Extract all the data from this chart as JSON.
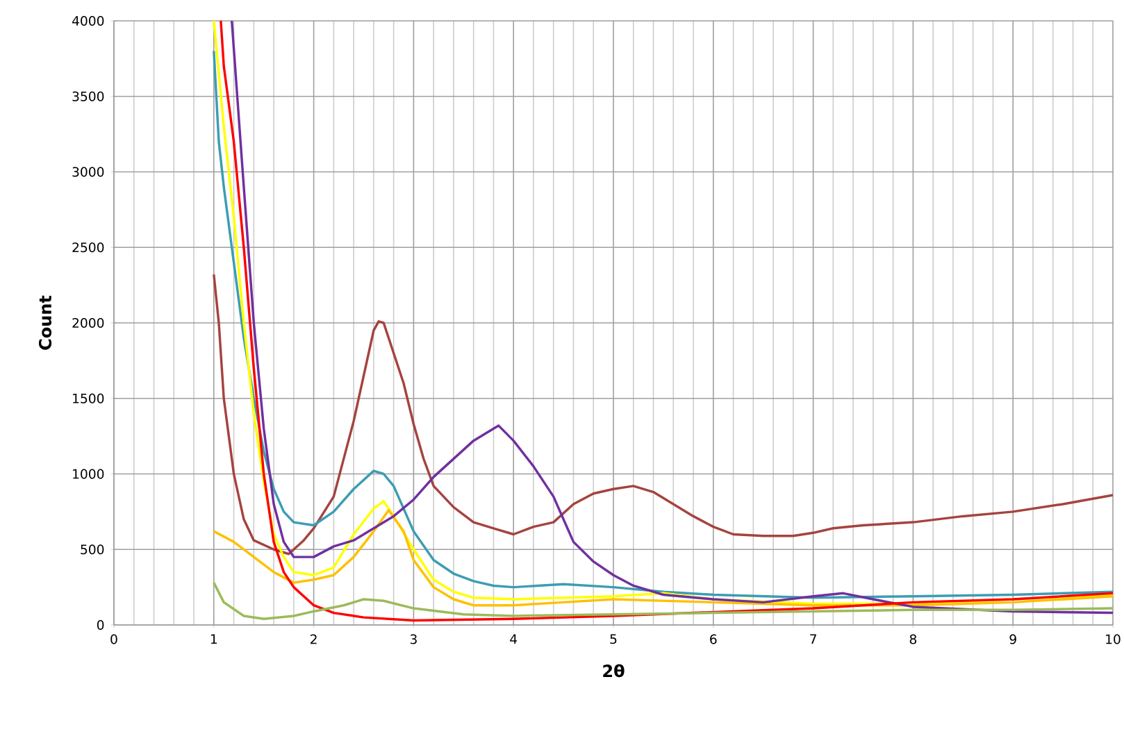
{
  "chart_data": {
    "type": "line",
    "xlabel": "2θ",
    "ylabel": "Count",
    "xlim": [
      0,
      10
    ],
    "ylim": [
      0,
      4000
    ],
    "xticks": [
      0,
      1,
      2,
      3,
      4,
      5,
      6,
      7,
      8,
      9,
      10
    ],
    "yticks": [
      0,
      500,
      1000,
      1500,
      2000,
      2500,
      3000,
      3500,
      4000
    ],
    "grid": true,
    "marker": "none",
    "line_style": "solid",
    "series": [
      {
        "color": "#a5433f",
        "x": [
          1.0,
          1.05,
          1.1,
          1.2,
          1.3,
          1.4,
          1.6,
          1.75,
          1.9,
          2.0,
          2.2,
          2.4,
          2.5,
          2.6,
          2.65,
          2.7,
          2.8,
          2.9,
          3.0,
          3.1,
          3.2,
          3.4,
          3.6,
          3.8,
          4.0,
          4.2,
          4.4,
          4.6,
          4.8,
          5.0,
          5.2,
          5.4,
          5.6,
          5.8,
          6.0,
          6.2,
          6.5,
          6.8,
          7.0,
          7.2,
          7.5,
          8.0,
          8.5,
          9.0,
          9.5,
          10.0
        ],
        "values": [
          2320,
          2000,
          1500,
          1000,
          700,
          560,
          500,
          470,
          560,
          640,
          850,
          1350,
          1650,
          1950,
          2010,
          2000,
          1800,
          1600,
          1330,
          1100,
          920,
          780,
          680,
          640,
          600,
          650,
          680,
          800,
          870,
          900,
          920,
          880,
          800,
          720,
          650,
          600,
          590,
          590,
          610,
          640,
          660,
          680,
          720,
          750,
          800,
          860
        ]
      },
      {
        "color": "#3c9db2",
        "x": [
          1.0,
          1.05,
          1.1,
          1.2,
          1.3,
          1.4,
          1.5,
          1.6,
          1.7,
          1.8,
          2.0,
          2.2,
          2.4,
          2.6,
          2.7,
          2.8,
          3.0,
          3.2,
          3.4,
          3.6,
          3.8,
          4.0,
          4.5,
          5.0,
          5.5,
          6.0,
          7.0,
          8.0,
          9.0,
          10.0
        ],
        "values": [
          3800,
          3200,
          2900,
          2400,
          1900,
          1500,
          1150,
          900,
          750,
          680,
          660,
          750,
          900,
          1020,
          1000,
          920,
          620,
          430,
          340,
          290,
          260,
          250,
          270,
          250,
          220,
          200,
          180,
          190,
          200,
          220
        ]
      },
      {
        "color": "#ffff00",
        "x": [
          1.0,
          1.1,
          1.2,
          1.3,
          1.4,
          1.5,
          1.6,
          1.7,
          1.8,
          2.0,
          2.2,
          2.4,
          2.6,
          2.7,
          2.8,
          3.0,
          3.2,
          3.4,
          3.6,
          4.0,
          4.5,
          5.0,
          5.5,
          6.0,
          7.0,
          8.0,
          9.0,
          10.0
        ],
        "values": [
          4000,
          3300,
          2700,
          2000,
          1400,
          950,
          600,
          450,
          350,
          330,
          380,
          600,
          770,
          820,
          720,
          500,
          300,
          220,
          180,
          170,
          180,
          190,
          210,
          170,
          140,
          140,
          170,
          200
        ]
      },
      {
        "color": "#ffc000",
        "x": [
          1.0,
          1.2,
          1.4,
          1.6,
          1.8,
          2.0,
          2.2,
          2.4,
          2.6,
          2.75,
          2.9,
          3.0,
          3.2,
          3.4,
          3.6,
          4.0,
          4.5,
          5.0,
          5.5,
          6.0,
          7.0,
          8.0,
          9.0,
          10.0
        ],
        "values": [
          620,
          550,
          450,
          350,
          280,
          300,
          330,
          450,
          620,
          760,
          620,
          430,
          250,
          170,
          130,
          130,
          150,
          170,
          160,
          150,
          130,
          130,
          150,
          190
        ]
      },
      {
        "color": "#7030a0",
        "x": [
          1.18,
          1.3,
          1.4,
          1.5,
          1.6,
          1.7,
          1.8,
          2.0,
          2.2,
          2.4,
          2.6,
          2.8,
          3.0,
          3.2,
          3.4,
          3.6,
          3.8,
          3.85,
          4.0,
          4.2,
          4.4,
          4.6,
          4.8,
          5.0,
          5.2,
          5.5,
          6.0,
          6.5,
          7.0,
          7.3,
          7.6,
          8.0,
          9.0,
          10.0
        ],
        "values": [
          4000,
          2900,
          2000,
          1300,
          800,
          550,
          450,
          450,
          520,
          560,
          640,
          720,
          830,
          980,
          1100,
          1220,
          1300,
          1320,
          1220,
          1050,
          850,
          550,
          420,
          330,
          260,
          200,
          170,
          150,
          190,
          210,
          170,
          120,
          90,
          80
        ]
      },
      {
        "color": "#ff0000",
        "x": [
          1.07,
          1.1,
          1.2,
          1.3,
          1.4,
          1.5,
          1.6,
          1.7,
          1.8,
          2.0,
          2.2,
          2.5,
          3.0,
          4.0,
          5.0,
          6.0,
          7.0,
          8.0,
          9.0,
          10.0
        ],
        "values": [
          4000,
          3700,
          3200,
          2500,
          1700,
          1000,
          550,
          350,
          250,
          130,
          80,
          50,
          30,
          40,
          60,
          null,
          110,
          150,
          170,
          210
        ]
      },
      {
        "color": "#9bbb59",
        "x": [
          1.0,
          1.1,
          1.3,
          1.5,
          1.8,
          2.0,
          2.3,
          2.5,
          2.7,
          3.0,
          3.5,
          4.0,
          5.0,
          6.0,
          7.0,
          8.0,
          9.0,
          10.0
        ],
        "values": [
          280,
          150,
          60,
          40,
          60,
          90,
          130,
          170,
          160,
          110,
          70,
          60,
          70,
          80,
          90,
          100,
          100,
          110
        ]
      }
    ]
  }
}
